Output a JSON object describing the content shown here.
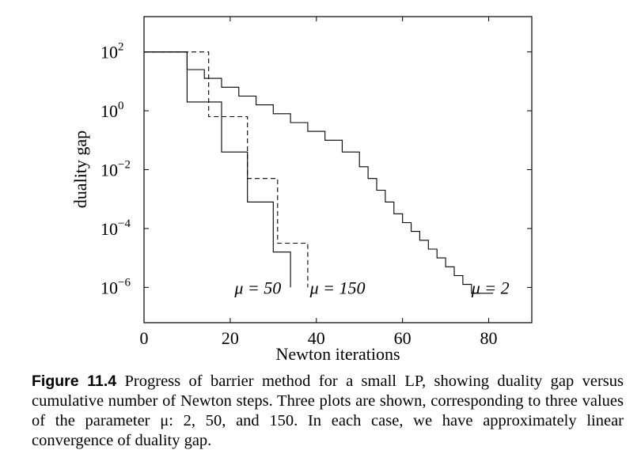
{
  "chart_data": {
    "type": "line",
    "step": true,
    "title": "",
    "xlabel": "Newton iterations",
    "ylabel": "duality gap",
    "xlim": [
      0,
      90
    ],
    "ylim_log10": [
      -7.2,
      3.2
    ],
    "yscale": "log",
    "grid": false,
    "x_ticks": [
      0,
      20,
      40,
      60,
      80
    ],
    "x_tick_labels": [
      "0",
      "20",
      "40",
      "60",
      "80"
    ],
    "y_ticks_log10": [
      2,
      0,
      -2,
      -4,
      -6
    ],
    "y_tick_bases": [
      "10",
      "10",
      "10",
      "10",
      "10"
    ],
    "y_tick_exponents": [
      "2",
      "0",
      "−2",
      "−4",
      "−6"
    ],
    "series": [
      {
        "label_math": "μ = 50",
        "style": "solid",
        "steps": [
          {
            "x": [
              0,
              10
            ],
            "log10_y": 2.0
          },
          {
            "x": [
              10,
              18
            ],
            "log10_y": 0.3
          },
          {
            "x": [
              18,
              24
            ],
            "log10_y": -1.4
          },
          {
            "x": [
              24,
              30
            ],
            "log10_y": -3.1
          },
          {
            "x": [
              30,
              34
            ],
            "log10_y": -4.8
          }
        ],
        "end_x": 34,
        "end_log10_y": -6.0
      },
      {
        "label_math": "μ = 150",
        "style": "dashed",
        "steps": [
          {
            "x": [
              0,
              15
            ],
            "log10_y": 2.0
          },
          {
            "x": [
              15,
              24
            ],
            "log10_y": -0.2
          },
          {
            "x": [
              24,
              31
            ],
            "log10_y": -2.3
          },
          {
            "x": [
              31,
              38
            ],
            "log10_y": -4.5
          }
        ],
        "end_x": 38,
        "end_log10_y": -6.0
      },
      {
        "label_math": "μ = 2",
        "style": "solid",
        "steps": [
          {
            "x": [
              0,
              10
            ],
            "log10_y": 2.0
          },
          {
            "x": [
              10,
              14
            ],
            "log10_y": 1.4
          },
          {
            "x": [
              14,
              18
            ],
            "log10_y": 1.1
          },
          {
            "x": [
              18,
              22
            ],
            "log10_y": 0.8
          },
          {
            "x": [
              22,
              26
            ],
            "log10_y": 0.5
          },
          {
            "x": [
              26,
              30
            ],
            "log10_y": 0.2
          },
          {
            "x": [
              30,
              34
            ],
            "log10_y": -0.1
          },
          {
            "x": [
              34,
              38
            ],
            "log10_y": -0.4
          },
          {
            "x": [
              38,
              42
            ],
            "log10_y": -0.7
          },
          {
            "x": [
              42,
              46
            ],
            "log10_y": -1.0
          },
          {
            "x": [
              46,
              50
            ],
            "log10_y": -1.4
          },
          {
            "x": [
              50,
              52
            ],
            "log10_y": -1.9
          },
          {
            "x": [
              52,
              54
            ],
            "log10_y": -2.3
          },
          {
            "x": [
              54,
              56
            ],
            "log10_y": -2.7
          },
          {
            "x": [
              56,
              58
            ],
            "log10_y": -3.1
          },
          {
            "x": [
              58,
              60
            ],
            "log10_y": -3.5
          },
          {
            "x": [
              60,
              62
            ],
            "log10_y": -3.8
          },
          {
            "x": [
              62,
              64
            ],
            "log10_y": -4.1
          },
          {
            "x": [
              64,
              66
            ],
            "log10_y": -4.4
          },
          {
            "x": [
              66,
              68
            ],
            "log10_y": -4.7
          },
          {
            "x": [
              68,
              70
            ],
            "log10_y": -5.0
          },
          {
            "x": [
              70,
              72
            ],
            "log10_y": -5.3
          },
          {
            "x": [
              72,
              74
            ],
            "log10_y": -5.6
          },
          {
            "x": [
              74,
              76
            ],
            "log10_y": -5.9
          },
          {
            "x": [
              76,
              81
            ],
            "log10_y": -6.2
          }
        ],
        "end_x": 81,
        "end_log10_y": -6.2
      }
    ],
    "series_labels": [
      {
        "text": "μ = 50",
        "x": 21,
        "log10_y": -6.0
      },
      {
        "text": "μ = 150",
        "x": 38.5,
        "log10_y": -6.0
      },
      {
        "text": "μ = 2",
        "x": 76,
        "log10_y": -6.0
      }
    ]
  },
  "caption": {
    "figure_number": "Figure 11.4",
    "text": "Progress of barrier method for a small LP, showing duality gap versus cumulative number of Newton steps. Three plots are shown, corresponding to three values of the parameter μ: 2, 50, and 150. In each case, we have approximately linear convergence of duality gap."
  }
}
